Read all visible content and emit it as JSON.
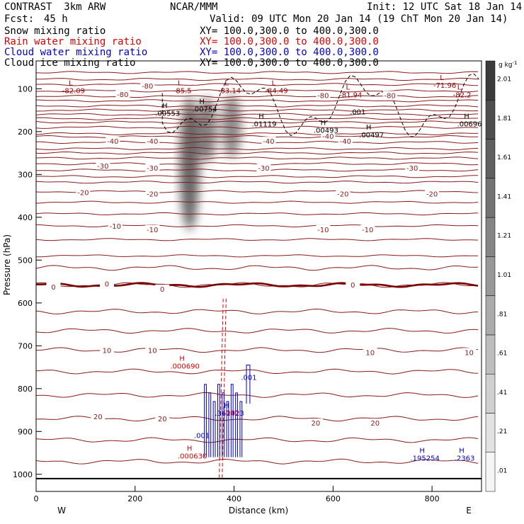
{
  "header": {
    "model": "CONTRAST  3km ARW",
    "center": "NCAR/MMM",
    "init": "Init: 12 UTC Sat 18 Jan 14",
    "fcst_label": "Fcst:",
    "fcst_value": "45 h",
    "valid": "Valid: 09 UTC Mon 20 Jan 14 (19 ChT Mon 20 Jan 14)",
    "fields": [
      {
        "name": "Snow mixing ratio",
        "xy": "XY= 100.0,300.0 to 400.0,300.0",
        "color": "#000000"
      },
      {
        "name": "Rain water mixing ratio",
        "xy": "XY= 100.0,300.0 to 400.0,300.0",
        "color": "#dd0000"
      },
      {
        "name": "Cloud water mixing ratio",
        "xy": "XY= 100.0,300.0 to 400.0,300.0",
        "color": "#0000cc"
      },
      {
        "name": "Cloud ice mixing ratio",
        "xy": "XY= 100.0,300.0 to 400.0,300.0",
        "color": "#000000"
      }
    ]
  },
  "chart_data": {
    "type": "heatmap",
    "xlabel": "Distance (km)",
    "ylabel": "Pressure (hPa)",
    "x_ticks": [
      0,
      200,
      400,
      600,
      800
    ],
    "y_ticks": [
      100,
      200,
      300,
      400,
      500,
      600,
      700,
      800,
      900,
      1000
    ],
    "xlim": [
      0,
      900
    ],
    "ylim": [
      1040,
      35
    ],
    "x_ends": {
      "left": "W",
      "right": "E"
    },
    "colorbar": {
      "unit": "g kg",
      "unit_exp": "-1",
      "labels": [
        "2.01",
        "1.81",
        "1.61",
        "1.41",
        "1.21",
        "1.01",
        ".81",
        ".61",
        ".41",
        ".21",
        ".01"
      ],
      "levels": [
        0.01,
        0.21,
        0.41,
        0.61,
        0.81,
        1.01,
        1.21,
        1.41,
        1.61,
        1.81,
        2.01,
        2.21
      ]
    },
    "snow_shading": [
      {
        "x": 310,
        "p_top": 120,
        "p_bottom": 430,
        "peak": 1.7
      },
      {
        "x": 345,
        "p_top": 120,
        "p_bottom": 270,
        "peak": 1.4
      },
      {
        "x": 395,
        "p_top": 115,
        "p_bottom": 260,
        "peak": 1.3
      }
    ],
    "temperature_labels": [
      {
        "x": 225,
        "p": 93,
        "text": "-80"
      },
      {
        "x": 175,
        "p": 113,
        "text": "-80"
      },
      {
        "x": 580,
        "p": 115,
        "text": "-80"
      },
      {
        "x": 715,
        "p": 115,
        "text": "-80"
      },
      {
        "x": 590,
        "p": 210,
        "text": "-40"
      },
      {
        "x": 155,
        "p": 222,
        "text": "-40"
      },
      {
        "x": 235,
        "p": 222,
        "text": "-40"
      },
      {
        "x": 470,
        "p": 222,
        "text": "-40"
      },
      {
        "x": 625,
        "p": 222,
        "text": "-40"
      },
      {
        "x": 135,
        "p": 280,
        "text": "-30"
      },
      {
        "x": 235,
        "p": 285,
        "text": "-30"
      },
      {
        "x": 460,
        "p": 285,
        "text": "-30"
      },
      {
        "x": 760,
        "p": 285,
        "text": "-30"
      },
      {
        "x": 95,
        "p": 342,
        "text": "-20"
      },
      {
        "x": 235,
        "p": 345,
        "text": "-20"
      },
      {
        "x": 620,
        "p": 345,
        "text": "-20"
      },
      {
        "x": 800,
        "p": 345,
        "text": "-20"
      },
      {
        "x": 160,
        "p": 420,
        "text": "-10"
      },
      {
        "x": 235,
        "p": 428,
        "text": "-10"
      },
      {
        "x": 580,
        "p": 428,
        "text": "-10"
      },
      {
        "x": 670,
        "p": 428,
        "text": "-10"
      },
      {
        "x": 35,
        "p": 562,
        "text": "0"
      },
      {
        "x": 143,
        "p": 555,
        "text": "0"
      },
      {
        "x": 255,
        "p": 567,
        "text": "0"
      },
      {
        "x": 640,
        "p": 557,
        "text": "0"
      },
      {
        "x": 143,
        "p": 710,
        "text": "10"
      },
      {
        "x": 235,
        "p": 710,
        "text": "10"
      },
      {
        "x": 675,
        "p": 715,
        "text": "10"
      },
      {
        "x": 875,
        "p": 715,
        "text": "10"
      },
      {
        "x": 125,
        "p": 865,
        "text": "20"
      },
      {
        "x": 255,
        "p": 870,
        "text": "20"
      },
      {
        "x": 565,
        "p": 880,
        "text": "20"
      },
      {
        "x": 685,
        "p": 880,
        "text": "20"
      }
    ],
    "temperature_isotherms_p": [
      62,
      78,
      90,
      105,
      118,
      128,
      140,
      150,
      160,
      170,
      178,
      190,
      205,
      212,
      225,
      240,
      250,
      262,
      275,
      290,
      305,
      318,
      340,
      365,
      392,
      420,
      452,
      490,
      518,
      558,
      620,
      665,
      710,
      760,
      815,
      870,
      920,
      970
    ],
    "freezing_level_p": 558,
    "surface_p": 1010,
    "extrema": [
      {
        "x": 70,
        "p": 92,
        "label": "L",
        "value": "-82.09",
        "color": "#990000"
      },
      {
        "x": 290,
        "p": 92,
        "label": "L",
        "value": "-85.5",
        "color": "#990000"
      },
      {
        "x": 385,
        "p": 92,
        "label": "L",
        "value": "-83.14",
        "color": "#990000"
      },
      {
        "x": 480,
        "p": 92,
        "label": "L",
        "value": "-84.49",
        "color": "#990000"
      },
      {
        "x": 630,
        "p": 102,
        "label": "L",
        "value": "-81.94",
        "color": "#990000"
      },
      {
        "x": 820,
        "p": 80,
        "label": "L",
        "value": "-71.96",
        "color": "#990000"
      },
      {
        "x": 855,
        "p": 102,
        "label": "L",
        "value": "-82.2",
        "color": "#990000"
      },
      {
        "x": 260,
        "p": 145,
        "label": "H",
        "value": ".00553",
        "color": "#000000"
      },
      {
        "x": 335,
        "p": 135,
        "label": "H",
        "value": ".00754",
        "color": "#000000"
      },
      {
        "x": 455,
        "p": 170,
        "label": "H",
        "value": ".01119",
        "color": "#000000"
      },
      {
        "x": 580,
        "p": 185,
        "label": "H",
        "value": ".00493",
        "color": "#000000"
      },
      {
        "x": 672,
        "p": 195,
        "label": "H",
        "value": ".00497",
        "color": "#000000"
      },
      {
        "x": 870,
        "p": 170,
        "label": "H",
        "value": ".00696",
        "color": "#000000"
      },
      {
        "x": 295,
        "p": 735,
        "label": "H",
        "value": ".000690",
        "color": "#dd0000"
      },
      {
        "x": 310,
        "p": 945,
        "label": "H",
        "value": ".000630",
        "color": "#dd0000"
      },
      {
        "x": 385,
        "p": 845,
        "label": "H",
        "value": ".361423",
        "color": "#0000cc"
      },
      {
        "x": 780,
        "p": 950,
        "label": "H",
        "value": ".195254",
        "color": "#0000cc"
      },
      {
        "x": 860,
        "p": 950,
        "label": "H",
        "value": ".2363",
        "color": "#0000cc"
      }
    ],
    "contour_labels": [
      {
        "x": 650,
        "p": 160,
        "text": ".001",
        "color": "#000000"
      },
      {
        "x": 430,
        "p": 780,
        "text": ".001",
        "color": "#0000cc"
      },
      {
        "x": 395,
        "p": 862,
        "text": ".001",
        "color": "#dd0000"
      },
      {
        "x": 335,
        "p": 915,
        "text": ".001",
        "color": "#0000cc"
      }
    ]
  }
}
